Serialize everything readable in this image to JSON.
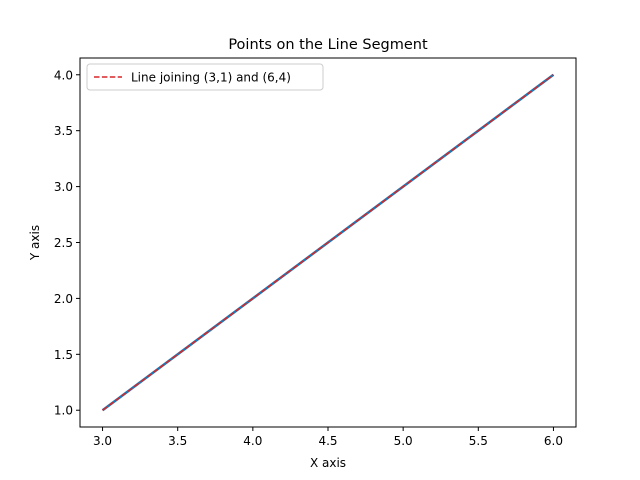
{
  "chart_data": {
    "type": "line",
    "title": "Points on the Line Segment",
    "xlabel": "X axis",
    "ylabel": "Y axis",
    "xlim": [
      2.85,
      6.15
    ],
    "ylim": [
      0.85,
      4.15
    ],
    "xticks": [
      3.0,
      3.5,
      4.0,
      4.5,
      5.0,
      5.5,
      6.0
    ],
    "yticks": [
      1.0,
      1.5,
      2.0,
      2.5,
      3.0,
      3.5,
      4.0
    ],
    "xtick_labels": [
      "3.0",
      "3.5",
      "4.0",
      "4.5",
      "5.0",
      "5.5",
      "6.0"
    ],
    "ytick_labels": [
      "1.0",
      "1.5",
      "2.0",
      "2.5",
      "3.0",
      "3.5",
      "4.0"
    ],
    "grid": false,
    "legend_position": "top-left",
    "series": [
      {
        "x": [
          3.0,
          6.0
        ],
        "y": [
          1.0,
          4.0
        ],
        "color": "#1f77b4",
        "style": "solid"
      },
      {
        "name": "Line joining (3,1) and (6,4)",
        "x": [
          3.0,
          6.0
        ],
        "y": [
          1.0,
          4.0
        ],
        "color": "#d62728",
        "style": "dashed"
      }
    ]
  }
}
